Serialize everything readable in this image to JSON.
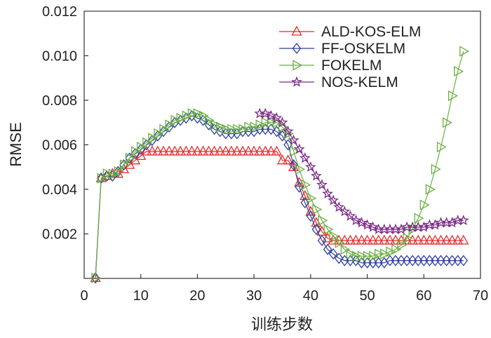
{
  "chart_data": {
    "type": "line",
    "xlabel": "训练步数",
    "ylabel": "RMSE",
    "xlim": [
      0,
      70
    ],
    "ylim": [
      0,
      0.012
    ],
    "xticks": [
      "0",
      "10",
      "20",
      "30",
      "40",
      "50",
      "60",
      "70"
    ],
    "yticks": [
      "0.002",
      "0.004",
      "0.006",
      "0.008",
      "0.010",
      "0.012"
    ],
    "legend_position": "top-right",
    "grid": false,
    "series": [
      {
        "name": "ALD-KOS-ELM",
        "color": "#e8282a",
        "marker": "triangle-up",
        "x": [
          2,
          3,
          4,
          5,
          6,
          7,
          8,
          9,
          10,
          11,
          12,
          13,
          14,
          15,
          16,
          17,
          18,
          19,
          20,
          21,
          22,
          23,
          24,
          25,
          26,
          27,
          28,
          29,
          30,
          31,
          32,
          33,
          34,
          35,
          36,
          37,
          38,
          39,
          40,
          41,
          42,
          43,
          44,
          45,
          46,
          47,
          48,
          49,
          50,
          51,
          52,
          53,
          54,
          55,
          56,
          57,
          58,
          59,
          60,
          61,
          62,
          63,
          64,
          65,
          66,
          67
        ],
        "y": [
          2e-05,
          0.0045,
          0.0046,
          0.0047,
          0.0047,
          0.0049,
          0.0051,
          0.0053,
          0.0055,
          0.0057,
          0.0057,
          0.0057,
          0.0057,
          0.0057,
          0.0057,
          0.0057,
          0.0057,
          0.0057,
          0.0057,
          0.0057,
          0.0057,
          0.0057,
          0.0057,
          0.0057,
          0.0057,
          0.0057,
          0.0057,
          0.0057,
          0.0057,
          0.0057,
          0.0057,
          0.0057,
          0.0057,
          0.0053,
          0.0053,
          0.005,
          0.0043,
          0.0037,
          0.003,
          0.0025,
          0.0021,
          0.0018,
          0.0017,
          0.0017,
          0.0017,
          0.0017,
          0.0017,
          0.0017,
          0.0017,
          0.0017,
          0.0017,
          0.0017,
          0.0017,
          0.0017,
          0.0017,
          0.0017,
          0.0017,
          0.0017,
          0.0017,
          0.0017,
          0.0017,
          0.0017,
          0.0017,
          0.0017,
          0.0017,
          0.0017
        ]
      },
      {
        "name": "FF-OSKELM",
        "color": "#2f3d9c",
        "marker": "diamond",
        "x": [
          2,
          3,
          4,
          5,
          6,
          7,
          8,
          9,
          10,
          11,
          12,
          13,
          14,
          15,
          16,
          17,
          18,
          19,
          20,
          21,
          22,
          23,
          24,
          25,
          26,
          27,
          28,
          29,
          30,
          31,
          32,
          33,
          34,
          35,
          36,
          37,
          38,
          39,
          40,
          41,
          42,
          43,
          44,
          45,
          46,
          47,
          48,
          49,
          50,
          51,
          52,
          53,
          54,
          55,
          56,
          57,
          58,
          59,
          60,
          61,
          62,
          63,
          64,
          65,
          66,
          67
        ],
        "y": [
          2e-05,
          0.0045,
          0.0046,
          0.0046,
          0.0048,
          0.0051,
          0.0054,
          0.0056,
          0.0058,
          0.006,
          0.0062,
          0.0064,
          0.0066,
          0.0068,
          0.007,
          0.0071,
          0.0072,
          0.0073,
          0.0072,
          0.0071,
          0.0069,
          0.0067,
          0.0066,
          0.0065,
          0.0065,
          0.0065,
          0.0066,
          0.0066,
          0.0066,
          0.0067,
          0.0067,
          0.0067,
          0.0066,
          0.0064,
          0.006,
          0.0051,
          0.0041,
          0.0034,
          0.0028,
          0.0022,
          0.0017,
          0.0013,
          0.0011,
          0.0009,
          0.0008,
          0.0008,
          0.0008,
          0.0007,
          0.0007,
          0.0007,
          0.0007,
          0.0007,
          0.0008,
          0.0008,
          0.0008,
          0.0008,
          0.0008,
          0.0008,
          0.0008,
          0.0008,
          0.0008,
          0.0008,
          0.0008,
          0.0008,
          0.0008,
          0.0008
        ]
      },
      {
        "name": "FOKELM",
        "color": "#69b040",
        "marker": "triangle-right",
        "x": [
          2,
          3,
          4,
          5,
          6,
          7,
          8,
          9,
          10,
          11,
          12,
          13,
          14,
          15,
          16,
          17,
          18,
          19,
          20,
          21,
          22,
          23,
          24,
          25,
          26,
          27,
          28,
          29,
          30,
          31,
          32,
          33,
          34,
          35,
          36,
          37,
          38,
          39,
          40,
          41,
          42,
          43,
          44,
          45,
          46,
          47,
          48,
          49,
          50,
          51,
          52,
          53,
          54,
          55,
          56,
          57,
          58,
          59,
          60,
          61,
          62,
          63,
          64,
          65,
          66,
          67
        ],
        "y": [
          2e-05,
          0.0045,
          0.0047,
          0.0047,
          0.0048,
          0.0051,
          0.0054,
          0.0057,
          0.0059,
          0.0061,
          0.0063,
          0.0065,
          0.0067,
          0.0069,
          0.0071,
          0.0072,
          0.0073,
          0.0074,
          0.0074,
          0.0073,
          0.0071,
          0.0069,
          0.0068,
          0.0067,
          0.0067,
          0.0067,
          0.0067,
          0.0068,
          0.0068,
          0.0069,
          0.007,
          0.007,
          0.007,
          0.0068,
          0.0065,
          0.0057,
          0.0049,
          0.0042,
          0.0036,
          0.0031,
          0.0026,
          0.0022,
          0.0019,
          0.0016,
          0.0013,
          0.0011,
          0.001,
          0.001,
          0.001,
          0.001,
          0.0011,
          0.0011,
          0.0012,
          0.0013,
          0.0015,
          0.0018,
          0.0022,
          0.0027,
          0.0033,
          0.004,
          0.0049,
          0.0059,
          0.007,
          0.0082,
          0.0093,
          0.0102
        ]
      },
      {
        "name": "NOS-KELM",
        "color": "#7a2a86",
        "marker": "star",
        "x": [
          31,
          32,
          33,
          34,
          35,
          36,
          37,
          38,
          39,
          40,
          41,
          42,
          43,
          44,
          45,
          46,
          47,
          48,
          49,
          50,
          51,
          52,
          53,
          54,
          55,
          56,
          57,
          58,
          59,
          60,
          61,
          62,
          63,
          64,
          65,
          66,
          67
        ],
        "y": [
          0.0074,
          0.0074,
          0.0073,
          0.0072,
          0.007,
          0.0066,
          0.0062,
          0.0058,
          0.0054,
          0.005,
          0.0046,
          0.0042,
          0.0038,
          0.0035,
          0.0032,
          0.003,
          0.0028,
          0.0026,
          0.0025,
          0.0024,
          0.0023,
          0.0022,
          0.0022,
          0.0022,
          0.0022,
          0.0022,
          0.0023,
          0.0023,
          0.0023,
          0.0023,
          0.0024,
          0.0024,
          0.0025,
          0.0025,
          0.0025,
          0.0026,
          0.0026
        ]
      }
    ]
  }
}
